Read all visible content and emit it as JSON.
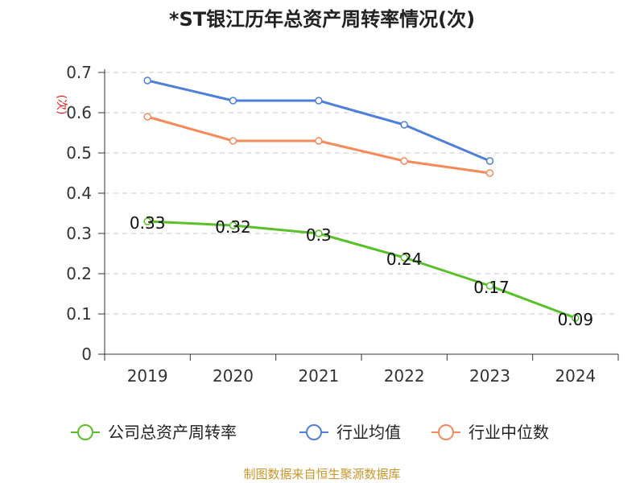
{
  "chart_data": {
    "type": "line",
    "title": "*ST银江历年总资产周转率情况(次)",
    "ylabel": "(次)",
    "xlabel": "",
    "categories": [
      "2019",
      "2020",
      "2021",
      "2022",
      "2023",
      "2024"
    ],
    "ylim": [
      0,
      0.7
    ],
    "yticks": [
      "0",
      "0.1",
      "0.2",
      "0.3",
      "0.4",
      "0.5",
      "0.6",
      "0.7"
    ],
    "grid": true,
    "legend_position": "bottom",
    "series": [
      {
        "name": "公司总资产周转率",
        "color": "#5ac02a",
        "values": [
          0.33,
          0.32,
          0.3,
          0.24,
          0.17,
          0.09
        ],
        "labels": [
          "0.33",
          "0.32",
          "0.3",
          "0.24",
          "0.17",
          "0.09"
        ]
      },
      {
        "name": "行业均值",
        "color": "#4e7fdb",
        "values": [
          0.68,
          0.63,
          0.63,
          0.57,
          0.48,
          null
        ]
      },
      {
        "name": "行业中位数",
        "color": "#f58a5a",
        "values": [
          0.59,
          0.53,
          0.53,
          0.48,
          0.45,
          null
        ]
      }
    ]
  },
  "source": "制图数据来自恒生聚源数据库"
}
